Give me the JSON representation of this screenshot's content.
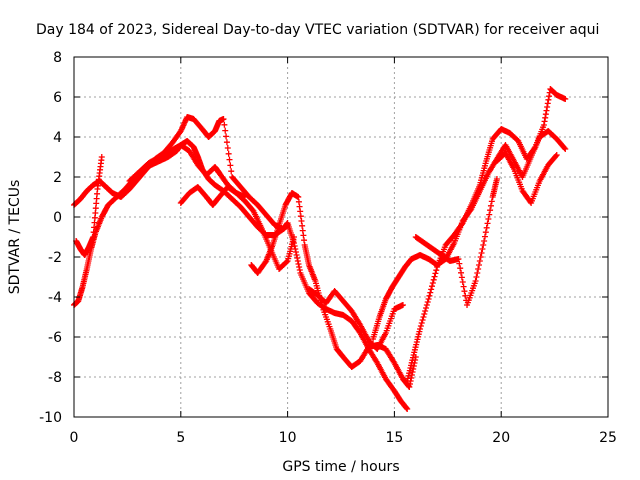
{
  "chart_data": {
    "type": "scatter",
    "title": "Day 184 of 2023, Sidereal Day-to-day VTEC variation (SDTVAR) for receiver aqui",
    "xlabel": "GPS time / hours",
    "ylabel": "SDTVAR / TECUs",
    "xlim": [
      0,
      25
    ],
    "ylim": [
      -10,
      8
    ],
    "x_ticks": [
      0,
      5,
      10,
      15,
      20,
      25
    ],
    "y_ticks": [
      -10,
      -8,
      -6,
      -4,
      -2,
      0,
      2,
      4,
      6,
      8
    ],
    "grid": true,
    "marker": "+",
    "series_color": "#ff0000",
    "series": [
      {
        "x": [
          0.0,
          0.2,
          0.4,
          0.6,
          0.8,
          1.0,
          1.3,
          1.6,
          2.0,
          2.4,
          2.8,
          3.2,
          3.6,
          4.0,
          4.4,
          4.8,
          5.0,
          5.3,
          5.6,
          5.8,
          6.0,
          6.3,
          6.6,
          7.0,
          7.4,
          7.8,
          8.2,
          8.6,
          9.0,
          9.4,
          9.8,
          10.0,
          10.3,
          10.6,
          11.0,
          11.4,
          11.8,
          12.2,
          12.6,
          13.0,
          13.4,
          13.8,
          14.2,
          14.6,
          15.0,
          15.3,
          15.6
        ],
        "y": [
          -4.4,
          -4.2,
          -3.5,
          -2.6,
          -1.6,
          -0.8,
          0.0,
          0.6,
          1.0,
          1.4,
          1.9,
          2.3,
          2.6,
          2.8,
          3.0,
          3.3,
          3.6,
          3.8,
          3.5,
          3.0,
          2.4,
          1.9,
          1.6,
          1.3,
          0.9,
          0.5,
          0.0,
          -0.5,
          -0.9,
          -0.9,
          -0.6,
          -0.3,
          -1.3,
          -2.8,
          -3.8,
          -4.3,
          -4.6,
          -4.8,
          -4.9,
          -5.2,
          -5.8,
          -6.6,
          -7.3,
          -8.1,
          -8.7,
          -9.2,
          -9.6
        ]
      },
      {
        "x": [
          0.0,
          0.3,
          0.6,
          0.9,
          1.2,
          1.5,
          1.8,
          2.2,
          2.6,
          3.0,
          3.4,
          3.8,
          4.2,
          4.6,
          5.0,
          5.3,
          5.6,
          6.0,
          6.3,
          6.6,
          6.8,
          7.0,
          7.4,
          7.8,
          8.2,
          8.6,
          9.0,
          9.4,
          9.8,
          10.0
        ],
        "y": [
          0.6,
          0.9,
          1.3,
          1.6,
          1.8,
          1.5,
          1.2,
          1.0,
          1.4,
          1.9,
          2.4,
          2.9,
          3.2,
          3.7,
          4.3,
          5.0,
          4.9,
          4.4,
          4.0,
          4.3,
          4.8,
          4.9,
          2.0,
          1.5,
          1.0,
          0.6,
          0.1,
          -0.4,
          -0.6,
          -0.4
        ]
      },
      {
        "x": [
          0.1,
          0.3,
          0.5,
          0.7,
          0.9,
          1.1,
          1.3
        ],
        "y": [
          -1.2,
          -1.6,
          -1.9,
          -1.5,
          -1.0,
          1.4,
          3.0
        ]
      },
      {
        "x": [
          2.6,
          3.0,
          3.5,
          4.0,
          4.5,
          5.0,
          5.4,
          5.8,
          6.2,
          6.6,
          6.8,
          7.2,
          7.6,
          8.0
        ],
        "y": [
          1.8,
          2.2,
          2.7,
          3.0,
          3.3,
          3.6,
          3.3,
          2.6,
          2.1,
          2.5,
          2.2,
          1.6,
          1.2,
          1.0
        ]
      },
      {
        "x": [
          5.0,
          5.4,
          5.8,
          6.2,
          6.5,
          6.8,
          7.2,
          7.6,
          8.0,
          8.4,
          8.8,
          9.2,
          9.6,
          10.0,
          10.3
        ],
        "y": [
          0.7,
          1.2,
          1.5,
          1.0,
          0.6,
          1.0,
          1.5,
          1.2,
          0.8,
          0.3,
          -0.6,
          -1.6,
          -2.6,
          -2.2,
          -1.0
        ]
      },
      {
        "x": [
          8.3,
          8.6,
          9.0,
          9.3,
          9.6,
          9.9,
          10.2,
          10.5,
          10.8,
          11.0,
          11.3,
          11.6,
          12.0,
          12.3,
          12.6,
          13.0,
          13.4,
          13.8,
          14.2,
          14.6,
          15.0,
          15.4,
          15.7,
          16.0
        ],
        "y": [
          -2.4,
          -2.8,
          -2.2,
          -1.4,
          -0.4,
          0.6,
          1.2,
          1.0,
          -1.4,
          -2.4,
          -3.2,
          -4.4,
          -5.6,
          -6.6,
          -7.0,
          -7.5,
          -7.2,
          -6.5,
          -6.4,
          -6.6,
          -7.3,
          -8.1,
          -8.5,
          -7.0
        ]
      },
      {
        "x": [
          11.0,
          11.4,
          11.8,
          12.2,
          12.6,
          13.0,
          13.4,
          13.8,
          14.2,
          14.6,
          15.0,
          15.4
        ],
        "y": [
          -3.6,
          -3.9,
          -4.3,
          -3.7,
          -4.2,
          -4.7,
          -5.4,
          -6.2,
          -6.6,
          -5.8,
          -4.6,
          -4.4
        ]
      },
      {
        "x": [
          14.0,
          14.3,
          14.6,
          14.9,
          15.2,
          15.5,
          15.8,
          16.2,
          16.6,
          17.0,
          17.4,
          17.8,
          18.2,
          18.6,
          19.0,
          19.4,
          19.8,
          20.2,
          20.6,
          21.0,
          21.4,
          21.8,
          22.2,
          22.6,
          23.0
        ],
        "y": [
          -6.1,
          -5.0,
          -4.1,
          -3.5,
          -3.0,
          -2.5,
          -2.1,
          -1.9,
          -2.1,
          -2.4,
          -2.1,
          -1.3,
          -0.2,
          0.4,
          1.3,
          2.2,
          2.9,
          3.6,
          2.8,
          2.0,
          3.0,
          4.0,
          4.3,
          3.9,
          3.4
        ]
      },
      {
        "x": [
          15.6,
          15.9,
          16.2,
          16.6,
          17.0,
          17.4,
          17.8,
          18.2,
          18.6,
          19.0,
          19.3,
          19.6,
          20.0,
          20.4,
          20.8,
          21.2,
          21.6,
          22.0,
          22.3,
          22.6,
          23.0
        ],
        "y": [
          -8.2,
          -6.9,
          -5.6,
          -4.1,
          -2.5,
          -1.4,
          -0.9,
          -0.3,
          0.6,
          1.6,
          2.8,
          3.9,
          4.4,
          4.2,
          3.8,
          2.9,
          3.5,
          4.6,
          6.4,
          6.1,
          5.9
        ]
      },
      {
        "x": [
          16.0,
          16.4,
          16.8,
          17.2,
          17.6,
          18.0,
          18.4,
          18.8,
          19.2,
          19.6,
          19.8
        ],
        "y": [
          -1.0,
          -1.3,
          -1.6,
          -1.9,
          -2.2,
          -2.1,
          -4.4,
          -3.2,
          -1.2,
          1.0,
          1.9
        ]
      },
      {
        "x": [
          19.8,
          20.2,
          20.6,
          21.0,
          21.4,
          21.8,
          22.2,
          22.6
        ],
        "y": [
          2.8,
          3.2,
          2.4,
          1.3,
          0.7,
          1.8,
          2.6,
          3.1
        ]
      }
    ]
  }
}
